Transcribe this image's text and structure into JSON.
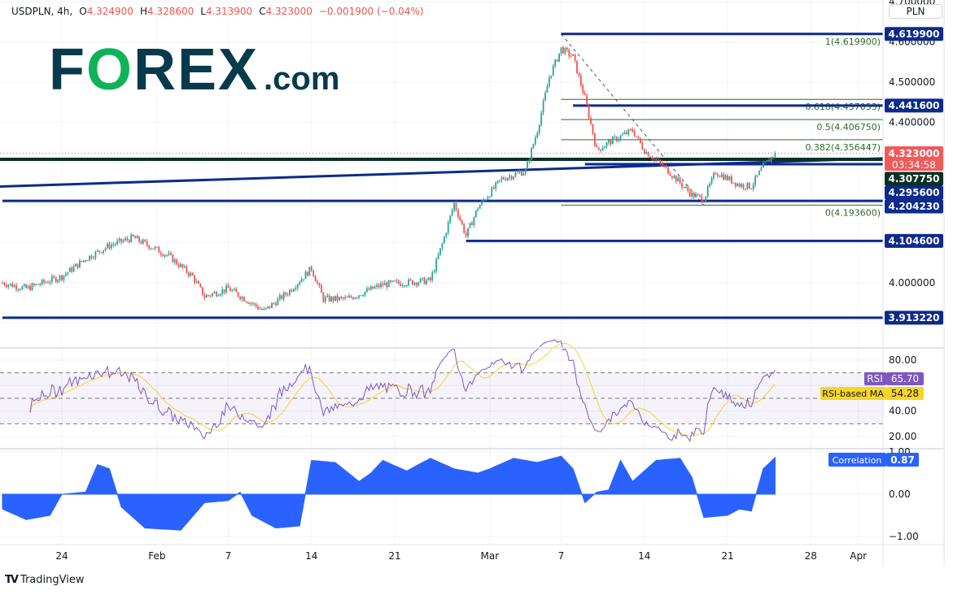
{
  "header": {
    "symbol": "USDPLN, 4h,",
    "open_label": "O",
    "open": "4.324900",
    "high_label": "H",
    "high": "4.328600",
    "low_label": "L",
    "low": "4.313900",
    "close_label": "C",
    "close": "4.323000",
    "change": "−0.001900 (−0.04%)"
  },
  "currency_button": "PLN",
  "logo": {
    "text_f": "F",
    "text_o": "O",
    "text_rex": "REX",
    "text_com": ".com"
  },
  "footer": {
    "brand": "TradingView"
  },
  "colors": {
    "up": "#26a69a",
    "down": "#ef5350",
    "level": "#0d2a8c",
    "fib": "#2e6b27",
    "rsi": "#7e57c2",
    "rsi_ma": "#f5d627",
    "correlation": "#2962ff",
    "current": "#f05a5a",
    "dark_level": "#0b3026"
  },
  "chart_data": {
    "type": "candlestick",
    "symbol": "USDPLN",
    "interval": "4h",
    "price_axis": {
      "ticks": [
        "4.700000",
        "4.600000",
        "4.500000",
        "4.400000",
        "4.000000"
      ],
      "tick_values": [
        4.7,
        4.6,
        4.5,
        4.4,
        4.0
      ],
      "range": [
        3.88,
        4.72
      ]
    },
    "time_axis": {
      "ticks": [
        {
          "label": "24",
          "date": "Jan 24"
        },
        {
          "label": "Feb",
          "date": "Feb 1"
        },
        {
          "label": "7",
          "date": "Feb 7"
        },
        {
          "label": "14",
          "date": "Feb 14"
        },
        {
          "label": "21",
          "date": "Feb 21"
        },
        {
          "label": "Mar",
          "date": "Mar 1"
        },
        {
          "label": "7",
          "date": "Mar 7"
        },
        {
          "label": "14",
          "date": "Mar 14"
        },
        {
          "label": "21",
          "date": "Mar 21"
        },
        {
          "label": "28",
          "date": "Mar 28"
        },
        {
          "label": "Apr",
          "date": "Apr 1"
        }
      ]
    },
    "price_path": [
      [
        "Jan 19",
        4.0
      ],
      [
        "Jan 21",
        3.986
      ],
      [
        "Jan 24",
        4.016
      ],
      [
        "Jan 26",
        4.06
      ],
      [
        "Jan 28",
        4.093
      ],
      [
        "Jan 30",
        4.113
      ],
      [
        "Feb 2",
        4.067
      ],
      [
        "Feb 4",
        4.016
      ],
      [
        "Feb 5",
        3.966
      ],
      [
        "Feb 7",
        3.986
      ],
      [
        "Feb 10",
        3.93
      ],
      [
        "Feb 12",
        3.976
      ],
      [
        "Feb 14",
        4.036
      ],
      [
        "Feb 15",
        3.96
      ],
      [
        "Feb 17",
        3.96
      ],
      [
        "Feb 20",
        3.996
      ],
      [
        "Feb 24",
        4.006
      ],
      [
        "Feb 25",
        4.097
      ],
      [
        "Feb 26",
        4.198
      ],
      [
        "Feb 27",
        4.117
      ],
      [
        "Feb 28",
        4.188
      ],
      [
        "Mar 2",
        4.259
      ],
      [
        "Mar 4",
        4.279
      ],
      [
        "Mar 5",
        4.38
      ],
      [
        "Mar 6",
        4.512
      ],
      [
        "Mar 7",
        4.583
      ],
      [
        "Mar 8",
        4.563
      ],
      [
        "Mar 9",
        4.46
      ],
      [
        "Mar 10",
        4.33
      ],
      [
        "Mar 11",
        4.35
      ],
      [
        "Mar 13",
        4.38
      ],
      [
        "Mar 14",
        4.33
      ],
      [
        "Mar 16",
        4.279
      ],
      [
        "Mar 18",
        4.219
      ],
      [
        "Mar 19",
        4.209
      ],
      [
        "Mar 20",
        4.276
      ],
      [
        "Mar 22",
        4.244
      ],
      [
        "Mar 23",
        4.24
      ],
      [
        "Mar 24",
        4.29
      ],
      [
        "Mar 25",
        4.323
      ]
    ],
    "horizontal_levels": [
      {
        "price": 4.6199,
        "label": "4.619900",
        "from": "Mar 7"
      },
      {
        "price": 4.4416,
        "label": "4.441600",
        "from": "Mar 8"
      },
      {
        "price": 4.2956,
        "label": "4.295600",
        "from": "Mar 9"
      },
      {
        "price": 4.20423,
        "label": "4.204230",
        "from": "Jan 19"
      },
      {
        "price": 4.1046,
        "label": "4.104600",
        "from": "Feb 27"
      },
      {
        "price": 3.91322,
        "label": "3.913220",
        "from": "Jan 19"
      }
    ],
    "dark_level": {
      "price": 4.30775,
      "label": "4.307750"
    },
    "current": {
      "price": 4.323,
      "label": "4.323000",
      "countdown": "03:34:58"
    },
    "trendline": {
      "start": [
        "Jan 19",
        4.24
      ],
      "end": [
        "Apr 1",
        4.31
      ]
    },
    "fibonacci": {
      "from": "Mar 7",
      "levels": [
        {
          "ratio": 1,
          "price": 4.6199,
          "label": "1(4.619900)"
        },
        {
          "ratio": 0.618,
          "price": 4.457053,
          "label": "0.618(4.457053)"
        },
        {
          "ratio": 0.5,
          "price": 4.40675,
          "label": "0.5(4.406750)"
        },
        {
          "ratio": 0.382,
          "price": 4.356447,
          "label": "0.382(4.356447)"
        },
        {
          "ratio": 0,
          "price": 4.1936,
          "label": "0(4.193600)"
        }
      ]
    },
    "rsi": {
      "name": "RSI",
      "value": "65.70",
      "ma_name": "RSI-based MA",
      "ma_value": "54.28",
      "ticks": [
        "80.00",
        "40.00",
        "20.00"
      ],
      "tick_values": [
        80,
        40,
        20
      ],
      "bands": [
        70,
        50,
        30
      ],
      "range": [
        12,
        92
      ]
    },
    "correlation": {
      "name": "Correlation",
      "value": "0.87",
      "ticks": [
        "1.00",
        "0.00",
        "−1.00"
      ],
      "tick_values": [
        1,
        0,
        -1
      ],
      "range": [
        -1.05,
        1.05
      ],
      "path": [
        [
          "Jan 19",
          -0.35
        ],
        [
          "Jan 21",
          -0.6
        ],
        [
          "Jan 23",
          -0.5
        ],
        [
          "Jan 24",
          0.0
        ],
        [
          "Jan 26",
          0.05
        ],
        [
          "Jan 27",
          0.7
        ],
        [
          "Jan 28",
          0.6
        ],
        [
          "Jan 29",
          -0.3
        ],
        [
          "Jan 31",
          -0.8
        ],
        [
          "Feb 3",
          -0.85
        ],
        [
          "Feb 5",
          -0.2
        ],
        [
          "Feb 7",
          -0.15
        ],
        [
          "Feb 8",
          0.05
        ],
        [
          "Feb 9",
          -0.5
        ],
        [
          "Feb 11",
          -0.8
        ],
        [
          "Feb 13",
          -0.75
        ],
        [
          "Feb 14",
          0.8
        ],
        [
          "Feb 16",
          0.75
        ],
        [
          "Feb 18",
          0.3
        ],
        [
          "Feb 19",
          0.5
        ],
        [
          "Feb 20",
          0.8
        ],
        [
          "Feb 22",
          0.55
        ],
        [
          "Feb 24",
          0.85
        ],
        [
          "Feb 26",
          0.6
        ],
        [
          "Feb 28",
          0.5
        ],
        [
          "Mar 1",
          0.6
        ],
        [
          "Mar 3",
          0.85
        ],
        [
          "Mar 5",
          0.75
        ],
        [
          "Mar 7",
          0.9
        ],
        [
          "Mar 8",
          0.6
        ],
        [
          "Mar 9",
          -0.2
        ],
        [
          "Mar 10",
          0.05
        ],
        [
          "Mar 11",
          0.1
        ],
        [
          "Mar 12",
          0.8
        ],
        [
          "Mar 13",
          0.3
        ],
        [
          "Mar 15",
          0.8
        ],
        [
          "Mar 17",
          0.85
        ],
        [
          "Mar 18",
          0.4
        ],
        [
          "Mar 19",
          -0.55
        ],
        [
          "Mar 21",
          -0.5
        ],
        [
          "Mar 22",
          -0.35
        ],
        [
          "Mar 23",
          -0.4
        ],
        [
          "Mar 24",
          0.6
        ],
        [
          "Mar 25",
          0.87
        ]
      ]
    }
  }
}
